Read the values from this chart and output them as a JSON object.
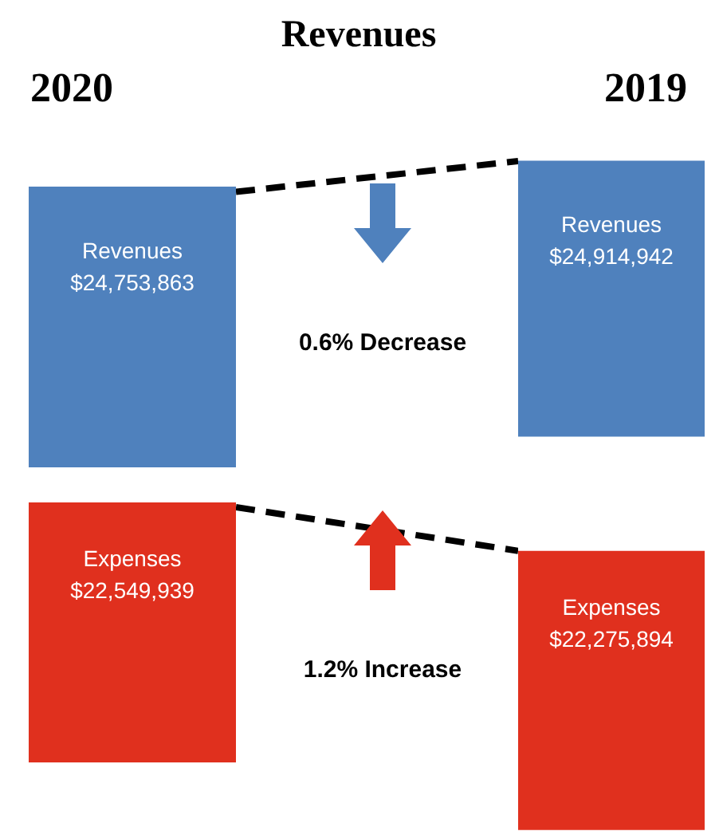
{
  "chart_data": {
    "type": "other",
    "title": "Revenues",
    "categories": [
      "2020",
      "2019"
    ],
    "series": [
      {
        "name": "Revenues",
        "color": "#4f81bd",
        "values": [
          24753863,
          24914942
        ],
        "value_labels": [
          "$24,753,863",
          "$24,914,942"
        ]
      },
      {
        "name": "Expenses",
        "color": "#e0301e",
        "values": [
          22549939,
          22275894
        ],
        "value_labels": [
          "$22,549,939",
          "$22,275,894"
        ]
      }
    ],
    "annotations": [
      "0.6% Decrease",
      "1.2% Increase"
    ]
  }
}
